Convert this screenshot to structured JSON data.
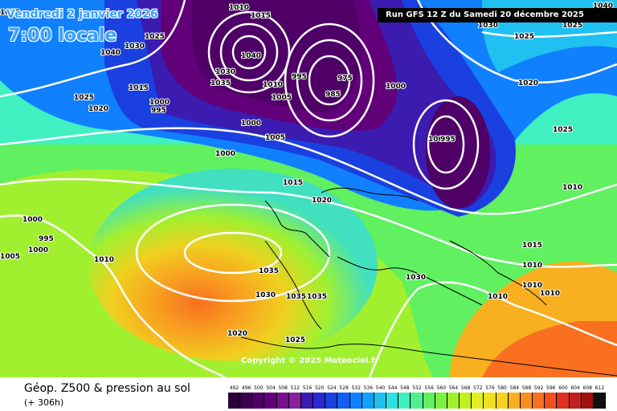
{
  "header": {
    "valid_date": "Vendredi 2 janvier 2026",
    "valid_time": "7:00 locale",
    "run_info": "Run GFS 12 Z du Samedi 20 décembre 2025"
  },
  "footer": {
    "product_title": "Géop. Z500 & pression au sol",
    "forecast_hour": "(+ 306h)",
    "copyright": "Copyright © 2025 Meteociel.fr"
  },
  "legend": {
    "values": [
      "492",
      "496",
      "500",
      "504",
      "508",
      "512",
      "516",
      "520",
      "524",
      "528",
      "532",
      "536",
      "540",
      "544",
      "548",
      "552",
      "556",
      "560",
      "564",
      "568",
      "572",
      "576",
      "580",
      "584",
      "588",
      "592",
      "596",
      "600",
      "604",
      "608",
      "612"
    ],
    "colors": [
      "#2a003a",
      "#3b0050",
      "#4e0066",
      "#62007a",
      "#76108c",
      "#8a20a0",
      "#3b1bb0",
      "#2a2ad0",
      "#1a40e0",
      "#1060f0",
      "#1080ff",
      "#10a0ff",
      "#20c0f0",
      "#30e0e0",
      "#40f0c0",
      "#50f090",
      "#60f060",
      "#80f040",
      "#a0f030",
      "#c0f020",
      "#e0f020",
      "#f0e020",
      "#f8d020",
      "#f8b020",
      "#f89020",
      "#f87020",
      "#f05020",
      "#e03020",
      "#c02020",
      "#a01010",
      "#101010"
    ]
  },
  "pressure_labels": [
    {
      "text": "1020"
    },
    {
      "text": "1010"
    },
    {
      "text": "1015"
    },
    {
      "text": "1025"
    },
    {
      "text": "1030"
    },
    {
      "text": "1040"
    },
    {
      "text": "1040"
    },
    {
      "text": "1035"
    },
    {
      "text": "1030"
    },
    {
      "text": "1025"
    },
    {
      "text": "1020"
    },
    {
      "text": "1010"
    },
    {
      "text": "995"
    },
    {
      "text": "1005"
    },
    {
      "text": "985"
    },
    {
      "text": "975"
    },
    {
      "text": "1000"
    },
    {
      "text": "1025"
    },
    {
      "text": "1020"
    },
    {
      "text": "1015"
    },
    {
      "text": "1000"
    },
    {
      "text": "995"
    },
    {
      "text": "1000"
    },
    {
      "text": "1005"
    },
    {
      "text": "1000"
    },
    {
      "text": "1000"
    },
    {
      "text": "995"
    },
    {
      "text": "1025"
    },
    {
      "text": "1010"
    },
    {
      "text": "1015"
    },
    {
      "text": "1020"
    },
    {
      "text": "1000"
    },
    {
      "text": "995"
    },
    {
      "text": "1000"
    },
    {
      "text": "1005"
    },
    {
      "text": "1010"
    },
    {
      "text": "1035"
    },
    {
      "text": "1035"
    },
    {
      "text": "1035"
    },
    {
      "text": "1030"
    },
    {
      "text": "1030"
    },
    {
      "text": "1020"
    },
    {
      "text": "1025"
    },
    {
      "text": "1015"
    },
    {
      "text": "1010"
    },
    {
      "text": "1010"
    },
    {
      "text": "1010"
    },
    {
      "text": "1010"
    },
    {
      "text": "1030"
    },
    {
      "text": "1025"
    },
    {
      "text": "1040"
    }
  ]
}
